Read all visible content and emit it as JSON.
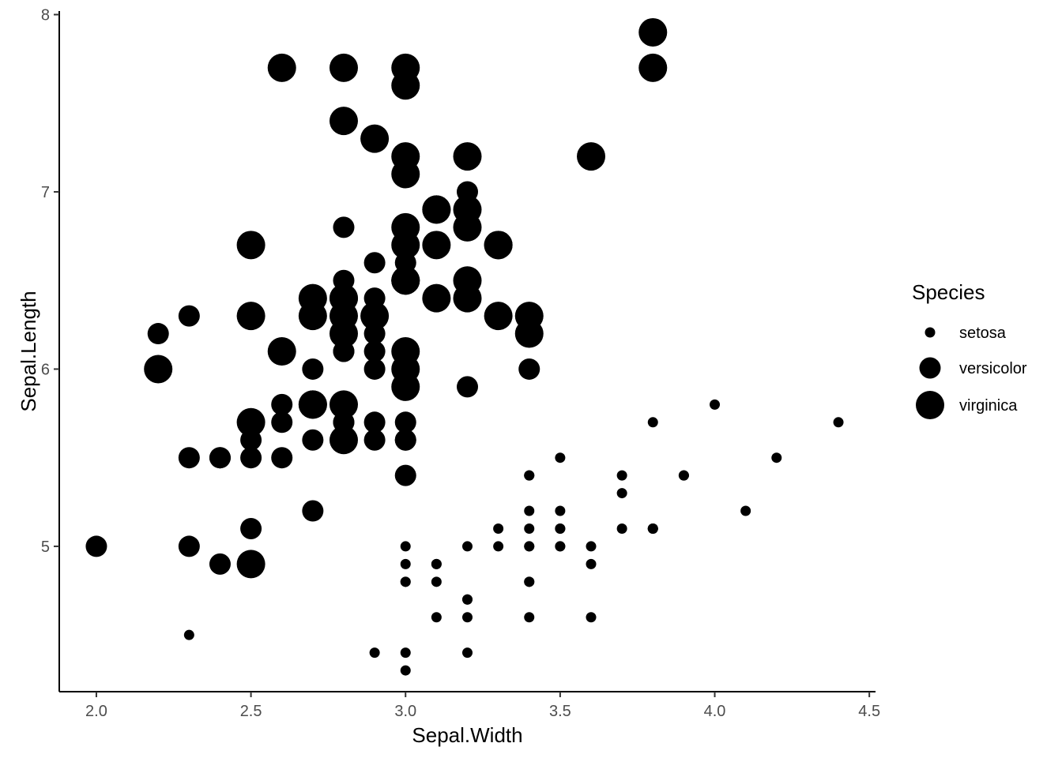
{
  "chart_data": {
    "type": "scatter",
    "title": "",
    "xlabel": "Sepal.Width",
    "ylabel": "Sepal.Length",
    "xlim": [
      1.88,
      4.52
    ],
    "ylim": [
      4.18,
      8.02
    ],
    "x_ticks": [
      2.0,
      2.5,
      3.0,
      3.5,
      4.0,
      4.5
    ],
    "x_tick_labels": [
      "2.0",
      "2.5",
      "3.0",
      "3.5",
      "4.0",
      "4.5"
    ],
    "y_ticks": [
      5,
      6,
      7,
      8
    ],
    "y_tick_labels": [
      "5",
      "6",
      "7",
      "8"
    ],
    "grid": false,
    "point_color": "#000000",
    "size_by": "Species",
    "legend": {
      "title": "Species",
      "position": "right",
      "entries": [
        "setosa",
        "versicolor",
        "virginica"
      ]
    },
    "series": [
      {
        "name": "setosa",
        "points": [
          [
            3.5,
            5.1
          ],
          [
            3.0,
            4.9
          ],
          [
            3.2,
            4.7
          ],
          [
            3.1,
            4.6
          ],
          [
            3.6,
            5.0
          ],
          [
            3.9,
            5.4
          ],
          [
            3.4,
            4.6
          ],
          [
            3.4,
            5.0
          ],
          [
            2.9,
            4.4
          ],
          [
            3.1,
            4.9
          ],
          [
            3.7,
            5.4
          ],
          [
            3.4,
            4.8
          ],
          [
            3.0,
            4.8
          ],
          [
            3.0,
            4.3
          ],
          [
            4.0,
            5.8
          ],
          [
            4.4,
            5.7
          ],
          [
            3.9,
            5.4
          ],
          [
            3.5,
            5.1
          ],
          [
            3.8,
            5.7
          ],
          [
            3.8,
            5.1
          ],
          [
            3.4,
            5.4
          ],
          [
            3.7,
            5.1
          ],
          [
            3.6,
            4.6
          ],
          [
            3.3,
            5.1
          ],
          [
            3.4,
            4.8
          ],
          [
            3.0,
            5.0
          ],
          [
            3.4,
            5.0
          ],
          [
            3.5,
            5.2
          ],
          [
            3.4,
            5.2
          ],
          [
            3.2,
            4.7
          ],
          [
            3.1,
            4.8
          ],
          [
            3.4,
            5.4
          ],
          [
            4.1,
            5.2
          ],
          [
            4.2,
            5.5
          ],
          [
            3.1,
            4.9
          ],
          [
            3.2,
            5.0
          ],
          [
            3.5,
            5.5
          ],
          [
            3.6,
            4.9
          ],
          [
            3.0,
            4.4
          ],
          [
            3.4,
            5.1
          ],
          [
            3.5,
            5.0
          ],
          [
            2.3,
            4.5
          ],
          [
            3.2,
            4.4
          ],
          [
            3.5,
            5.0
          ],
          [
            3.8,
            5.1
          ],
          [
            3.0,
            4.8
          ],
          [
            3.8,
            5.1
          ],
          [
            3.2,
            4.6
          ],
          [
            3.7,
            5.3
          ],
          [
            3.3,
            5.0
          ]
        ]
      },
      {
        "name": "versicolor",
        "points": [
          [
            3.2,
            7.0
          ],
          [
            3.2,
            6.4
          ],
          [
            3.1,
            6.9
          ],
          [
            2.3,
            5.5
          ],
          [
            2.8,
            6.5
          ],
          [
            2.8,
            5.7
          ],
          [
            3.3,
            6.3
          ],
          [
            2.4,
            4.9
          ],
          [
            2.9,
            6.6
          ],
          [
            2.7,
            5.2
          ],
          [
            2.0,
            5.0
          ],
          [
            3.0,
            5.9
          ],
          [
            2.2,
            6.0
          ],
          [
            2.9,
            6.1
          ],
          [
            2.9,
            5.6
          ],
          [
            3.1,
            6.7
          ],
          [
            3.0,
            5.6
          ],
          [
            2.7,
            5.8
          ],
          [
            2.2,
            6.2
          ],
          [
            2.5,
            5.6
          ],
          [
            3.2,
            5.9
          ],
          [
            2.8,
            6.1
          ],
          [
            2.5,
            6.3
          ],
          [
            2.8,
            6.1
          ],
          [
            2.9,
            6.4
          ],
          [
            3.0,
            6.6
          ],
          [
            2.8,
            6.8
          ],
          [
            3.0,
            6.7
          ],
          [
            2.9,
            6.0
          ],
          [
            2.6,
            5.7
          ],
          [
            2.4,
            5.5
          ],
          [
            2.4,
            5.5
          ],
          [
            2.7,
            5.8
          ],
          [
            2.7,
            6.0
          ],
          [
            3.0,
            5.4
          ],
          [
            3.4,
            6.0
          ],
          [
            3.1,
            6.7
          ],
          [
            2.3,
            6.3
          ],
          [
            3.0,
            5.6
          ],
          [
            2.5,
            5.5
          ],
          [
            2.6,
            5.5
          ],
          [
            3.0,
            6.1
          ],
          [
            2.6,
            5.8
          ],
          [
            2.3,
            5.0
          ],
          [
            2.7,
            5.6
          ],
          [
            3.0,
            5.7
          ],
          [
            2.9,
            5.7
          ],
          [
            2.9,
            6.2
          ],
          [
            2.5,
            5.1
          ],
          [
            2.8,
            5.7
          ]
        ]
      },
      {
        "name": "virginica",
        "points": [
          [
            3.3,
            6.3
          ],
          [
            2.7,
            5.8
          ],
          [
            3.0,
            7.1
          ],
          [
            2.9,
            6.3
          ],
          [
            3.0,
            6.5
          ],
          [
            3.0,
            7.6
          ],
          [
            2.5,
            4.9
          ],
          [
            2.9,
            7.3
          ],
          [
            2.5,
            6.7
          ],
          [
            3.6,
            7.2
          ],
          [
            3.2,
            6.5
          ],
          [
            2.7,
            6.4
          ],
          [
            3.0,
            6.8
          ],
          [
            2.5,
            5.7
          ],
          [
            2.8,
            5.8
          ],
          [
            3.2,
            6.4
          ],
          [
            3.0,
            6.5
          ],
          [
            3.8,
            7.7
          ],
          [
            2.6,
            7.7
          ],
          [
            2.2,
            6.0
          ],
          [
            3.2,
            6.9
          ],
          [
            2.8,
            5.6
          ],
          [
            2.8,
            7.7
          ],
          [
            2.7,
            6.3
          ],
          [
            3.3,
            6.7
          ],
          [
            3.2,
            7.2
          ],
          [
            2.8,
            6.2
          ],
          [
            3.0,
            6.1
          ],
          [
            2.8,
            6.4
          ],
          [
            3.0,
            7.2
          ],
          [
            2.8,
            7.4
          ],
          [
            3.8,
            7.9
          ],
          [
            2.8,
            6.4
          ],
          [
            2.8,
            6.3
          ],
          [
            2.6,
            6.1
          ],
          [
            3.0,
            7.7
          ],
          [
            3.4,
            6.3
          ],
          [
            3.1,
            6.4
          ],
          [
            3.0,
            6.0
          ],
          [
            3.1,
            6.9
          ],
          [
            3.1,
            6.7
          ],
          [
            3.1,
            6.9
          ],
          [
            2.7,
            5.8
          ],
          [
            3.2,
            6.8
          ],
          [
            3.3,
            6.7
          ],
          [
            3.0,
            6.7
          ],
          [
            2.5,
            6.3
          ],
          [
            3.0,
            6.5
          ],
          [
            3.4,
            6.2
          ],
          [
            3.0,
            5.9
          ]
        ]
      }
    ]
  }
}
